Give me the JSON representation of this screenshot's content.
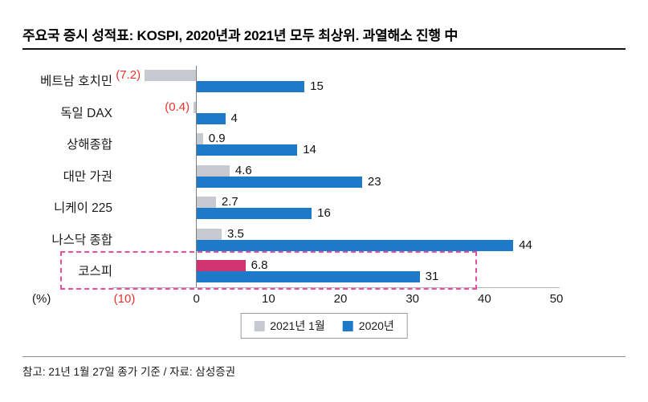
{
  "title": "주요국 증시 성적표: KOSPI, 2020년과 2021년 모두 최상위. 과열해소 진행 中",
  "chart_data": {
    "type": "bar",
    "orientation": "horizontal",
    "title": "주요국 증시 성적표: KOSPI, 2020년과 2021년 모두 최상위. 과열해소 진행 中",
    "categories": [
      "베트남 호치민",
      "독일 DAX",
      "상해종합",
      "대만 가권",
      "니케이 225",
      "나스닥 종합",
      "코스피"
    ],
    "series": [
      {
        "name": "2021년 1월",
        "color": "#c6c9d0",
        "values": [
          -7.2,
          -0.4,
          0.9,
          4.6,
          2.7,
          3.5,
          6.8
        ],
        "labels": [
          "(7.2)",
          "(0.4)",
          "0.9",
          "4.6",
          "2.7",
          "3.5",
          "6.8"
        ]
      },
      {
        "name": "2020년",
        "color": "#1e79c8",
        "values": [
          15,
          4,
          14,
          23,
          16,
          44,
          31
        ],
        "labels": [
          "15",
          "4",
          "14",
          "23",
          "16",
          "44",
          "31"
        ]
      }
    ],
    "highlight": {
      "category": "코스피",
      "series": "2021년 1월",
      "bar_color": "#d0336f",
      "box_color": "#e84da3"
    },
    "negative_value_color": "#e7342c",
    "xlabel": "(%)",
    "xlim": [
      -10,
      50
    ],
    "x_ticks": [
      {
        "label": "(10)",
        "value": -10,
        "color": "#e7342c"
      },
      {
        "label": "0",
        "value": 0
      },
      {
        "label": "10",
        "value": 10
      },
      {
        "label": "20",
        "value": 20
      },
      {
        "label": "30",
        "value": 30
      },
      {
        "label": "40",
        "value": 40
      },
      {
        "label": "50",
        "value": 50
      }
    ],
    "grid": false,
    "legend_position": "bottom-center"
  },
  "footer": "참고: 21년 1월 27일 종가 기준 / 자료: 삼성증권"
}
